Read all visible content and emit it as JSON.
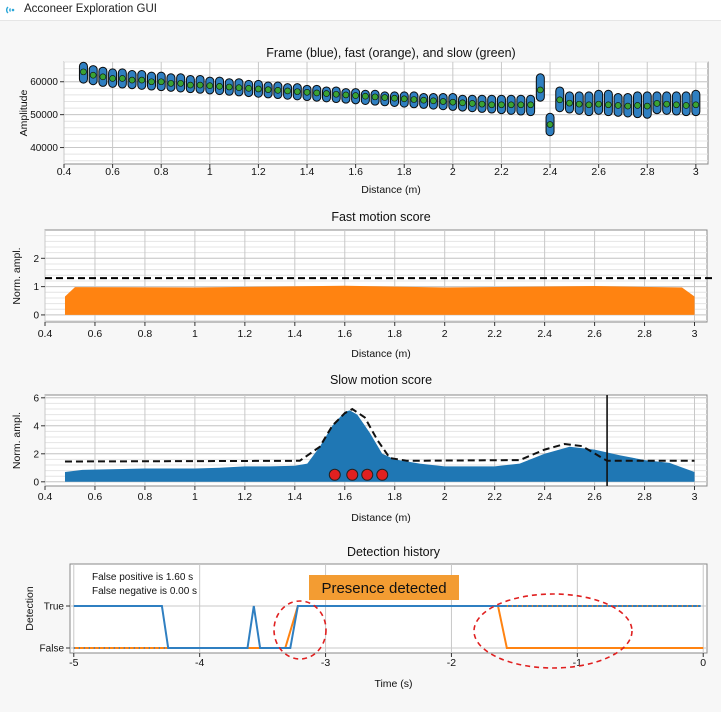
{
  "window": {
    "title": "Acconeer Exploration GUI"
  },
  "chart_data": [
    {
      "type": "scatter",
      "title": "Frame (blue), fast (orange), and slow (green)",
      "xlabel": "Distance (m)",
      "ylabel": "Amplitude",
      "xlim": [
        0.4,
        3.05
      ],
      "ylim": [
        35000,
        66000
      ],
      "xticks": [
        "0.4",
        "0.6",
        "0.8",
        "1",
        "1.2",
        "1.4",
        "1.6",
        "1.8",
        "2",
        "2.2",
        "2.4",
        "2.6",
        "2.8",
        "3"
      ],
      "yticks": [
        "40000",
        "50000",
        "60000"
      ],
      "grid": true,
      "colors": {
        "frame": "#2f7fc1",
        "slow": "#3aa335"
      },
      "x": [
        0.48,
        0.52,
        0.56,
        0.6,
        0.64,
        0.68,
        0.72,
        0.76,
        0.8,
        0.84,
        0.88,
        0.92,
        0.96,
        1.0,
        1.04,
        1.08,
        1.12,
        1.16,
        1.2,
        1.24,
        1.28,
        1.32,
        1.36,
        1.4,
        1.44,
        1.48,
        1.52,
        1.56,
        1.6,
        1.64,
        1.68,
        1.72,
        1.76,
        1.8,
        1.84,
        1.88,
        1.92,
        1.96,
        2.0,
        2.04,
        2.08,
        2.12,
        2.16,
        2.2,
        2.24,
        2.28,
        2.32,
        2.36,
        2.4,
        2.44,
        2.48,
        2.52,
        2.56,
        2.6,
        2.64,
        2.68,
        2.72,
        2.76,
        2.8,
        2.84,
        2.88,
        2.92,
        2.96,
        3.0
      ],
      "series": [
        {
          "name": "Frame",
          "low": [
            60500,
            60000,
            59500,
            59200,
            59000,
            58800,
            58600,
            58400,
            58200,
            58000,
            57800,
            57600,
            57400,
            57200,
            57000,
            56800,
            56600,
            56400,
            56200,
            56000,
            55800,
            55600,
            55400,
            55200,
            55000,
            54800,
            54600,
            54400,
            54200,
            54000,
            53800,
            53600,
            53400,
            53200,
            53000,
            52800,
            52600,
            52400,
            52200,
            52000,
            51800,
            51600,
            51400,
            51200,
            51000,
            50800,
            50600,
            55000,
            44500,
            51800,
            51400,
            51000,
            50600,
            51000,
            50600,
            50400,
            50200,
            50000,
            49800,
            51200,
            51000,
            50800,
            50600,
            50600
          ],
          "high": [
            65000,
            64000,
            63500,
            63000,
            63000,
            62500,
            62500,
            62000,
            62000,
            61500,
            61500,
            61000,
            61000,
            60500,
            60500,
            60000,
            60000,
            59500,
            59500,
            59000,
            59000,
            58500,
            58500,
            58000,
            58000,
            57500,
            57500,
            57000,
            57000,
            56500,
            56500,
            56000,
            56000,
            56000,
            56000,
            55500,
            55500,
            55500,
            55500,
            55000,
            55000,
            55000,
            55000,
            55000,
            55000,
            55000,
            55000,
            61500,
            49500,
            57500,
            56000,
            56000,
            56000,
            56500,
            56500,
            55500,
            55500,
            56000,
            56000,
            56000,
            56000,
            56000,
            56000,
            56500
          ]
        },
        {
          "name": "Slow",
          "values": [
            63000,
            62000,
            61500,
            61000,
            61000,
            60500,
            60500,
            60000,
            60000,
            59500,
            59500,
            59000,
            59000,
            58800,
            58600,
            58400,
            58200,
            58000,
            57800,
            57600,
            57400,
            57200,
            57000,
            56800,
            56600,
            56400,
            56200,
            56000,
            55800,
            55600,
            55400,
            55200,
            55000,
            54800,
            54600,
            54400,
            54200,
            54000,
            53800,
            53600,
            53400,
            53200,
            53000,
            53000,
            53000,
            53000,
            53000,
            57500,
            47000,
            54500,
            53500,
            53200,
            53000,
            53200,
            53000,
            52800,
            52600,
            52800,
            52600,
            53400,
            53200,
            53000,
            52800,
            53000
          ]
        }
      ]
    },
    {
      "type": "area",
      "title": "Fast motion score",
      "xlabel": "Distance (m)",
      "ylabel": "Norm. ampl.",
      "xlim": [
        0.4,
        3.05
      ],
      "ylim": [
        -0.25,
        3
      ],
      "xticks": [
        "0.4",
        "0.6",
        "0.8",
        "1",
        "1.2",
        "1.4",
        "1.6",
        "1.8",
        "2",
        "2.2",
        "2.4",
        "2.6",
        "2.8",
        "3"
      ],
      "yticks": [
        "0",
        "1",
        "2"
      ],
      "grid": true,
      "threshold": 1.3,
      "colors": {
        "fill": "#ff8311",
        "threshold": "#000000"
      },
      "x": [
        0.48,
        0.52,
        1.0,
        1.6,
        2.0,
        2.6,
        2.95,
        3.0
      ],
      "values": [
        0.65,
        0.98,
        0.97,
        1.03,
        0.97,
        1.02,
        0.97,
        0.65
      ]
    },
    {
      "type": "area",
      "title": "Slow motion score",
      "xlabel": "Distance (m)",
      "ylabel": "Norm. ampl.",
      "xlim": [
        0.4,
        3.05
      ],
      "ylim": [
        -0.3,
        6.2
      ],
      "xticks": [
        "0.4",
        "0.6",
        "0.8",
        "1",
        "1.2",
        "1.4",
        "1.6",
        "1.8",
        "2",
        "2.2",
        "2.4",
        "2.6",
        "2.8",
        "3"
      ],
      "yticks": [
        "0",
        "2",
        "4",
        "6"
      ],
      "grid": true,
      "colors": {
        "fill": "#1f77b4",
        "line": "#111111",
        "marker": "#e02020"
      },
      "x": [
        0.48,
        0.55,
        0.8,
        1.0,
        1.1,
        1.2,
        1.3,
        1.4,
        1.45,
        1.5,
        1.55,
        1.6,
        1.62,
        1.65,
        1.7,
        1.75,
        1.8,
        1.9,
        2.0,
        2.2,
        2.3,
        2.4,
        2.5,
        2.6,
        2.7,
        2.8,
        2.9,
        3.0
      ],
      "values": [
        0.7,
        0.85,
        0.95,
        0.95,
        1.0,
        1.1,
        1.1,
        1.15,
        1.3,
        2.5,
        4.0,
        5.0,
        5.1,
        4.8,
        3.5,
        2.0,
        1.6,
        1.3,
        1.1,
        1.1,
        1.3,
        2.0,
        2.5,
        2.3,
        1.9,
        1.55,
        1.35,
        0.7
      ],
      "threshold_line": {
        "x": [
          0.48,
          1.42,
          1.5,
          1.55,
          1.6,
          1.63,
          1.68,
          1.73,
          1.78,
          1.85,
          2.3,
          2.4,
          2.48,
          2.55,
          2.65,
          3.0
        ],
        "values": [
          1.45,
          1.5,
          2.5,
          4.0,
          4.9,
          5.2,
          4.6,
          3.0,
          1.7,
          1.5,
          1.55,
          2.3,
          2.7,
          2.55,
          1.5,
          1.5
        ]
      },
      "markers": [
        1.56,
        1.63,
        1.69,
        1.75
      ],
      "marker_level": 0.5,
      "vline": 2.65
    },
    {
      "type": "line",
      "title": "Detection history",
      "xlabel": "Time (s)",
      "ylabel": "Detection",
      "xlim": [
        -5.03,
        0.03
      ],
      "xticks": [
        "-5",
        "-4",
        "-3",
        "-2",
        "-1",
        "0"
      ],
      "yticks": [
        "False",
        "True"
      ],
      "grid": true,
      "annotations": {
        "fp": "False positive is 1.60 s",
        "fn": "False negative is 0.00 s",
        "banner": "Presence detected"
      },
      "colors": {
        "presence": "#2f7fc1",
        "truth": "#ff8311",
        "banner": "#f39c32",
        "circle": "#e02020"
      },
      "series": [
        {
          "name": "Presence",
          "x": [
            -5.0,
            -4.3,
            -4.25,
            -3.62,
            -3.57,
            -3.52,
            -3.28,
            -3.22,
            -0.02
          ],
          "values": [
            1,
            1,
            0,
            0,
            1,
            0,
            0,
            1,
            1
          ]
        },
        {
          "name": "Truth",
          "x": [
            -5.0,
            -3.32,
            -3.22,
            -1.63,
            -1.56,
            0.0
          ],
          "values": [
            0,
            0,
            1,
            1,
            0,
            0
          ]
        }
      ]
    }
  ]
}
